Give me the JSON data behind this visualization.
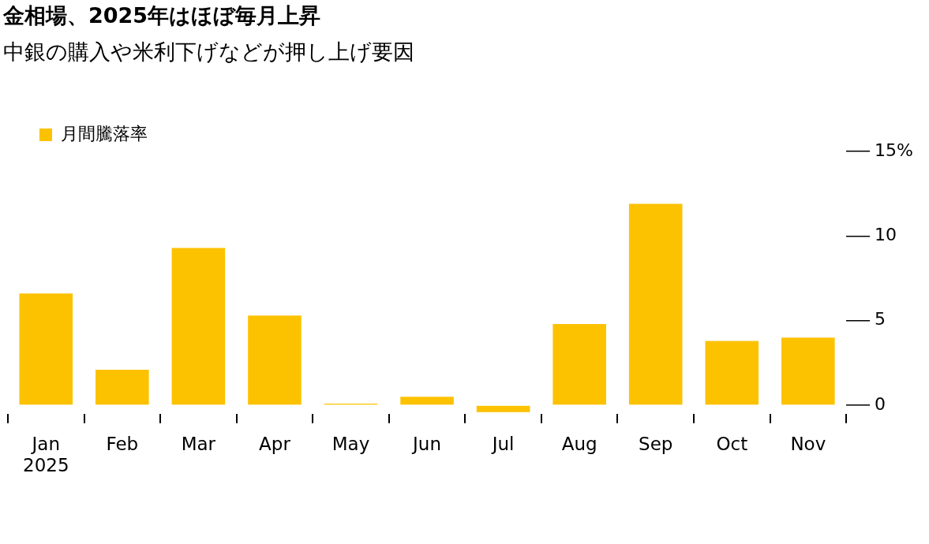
{
  "chart_data": {
    "type": "bar",
    "title": "金相場、2025年はほぼ毎月上昇",
    "subtitle": "中銀の購入や米利下げなどが押し上げ要因",
    "categories": [
      "Jan\n2025",
      "Feb",
      "Mar",
      "Apr",
      "May",
      "Jun",
      "Jul",
      "Aug",
      "Sep",
      "Oct",
      "Nov"
    ],
    "series": [
      {
        "name": "月間騰落率",
        "color": "#fcc200",
        "values": [
          6.6,
          2.1,
          9.3,
          5.3,
          0.1,
          0.5,
          -0.4,
          4.8,
          11.9,
          3.8,
          4.0
        ]
      }
    ],
    "ylim": [
      -0.5,
      15
    ],
    "yticks": [
      0,
      5,
      10,
      {
        "value": 15,
        "label": "15%"
      }
    ],
    "grid": false,
    "legend": "top left"
  }
}
